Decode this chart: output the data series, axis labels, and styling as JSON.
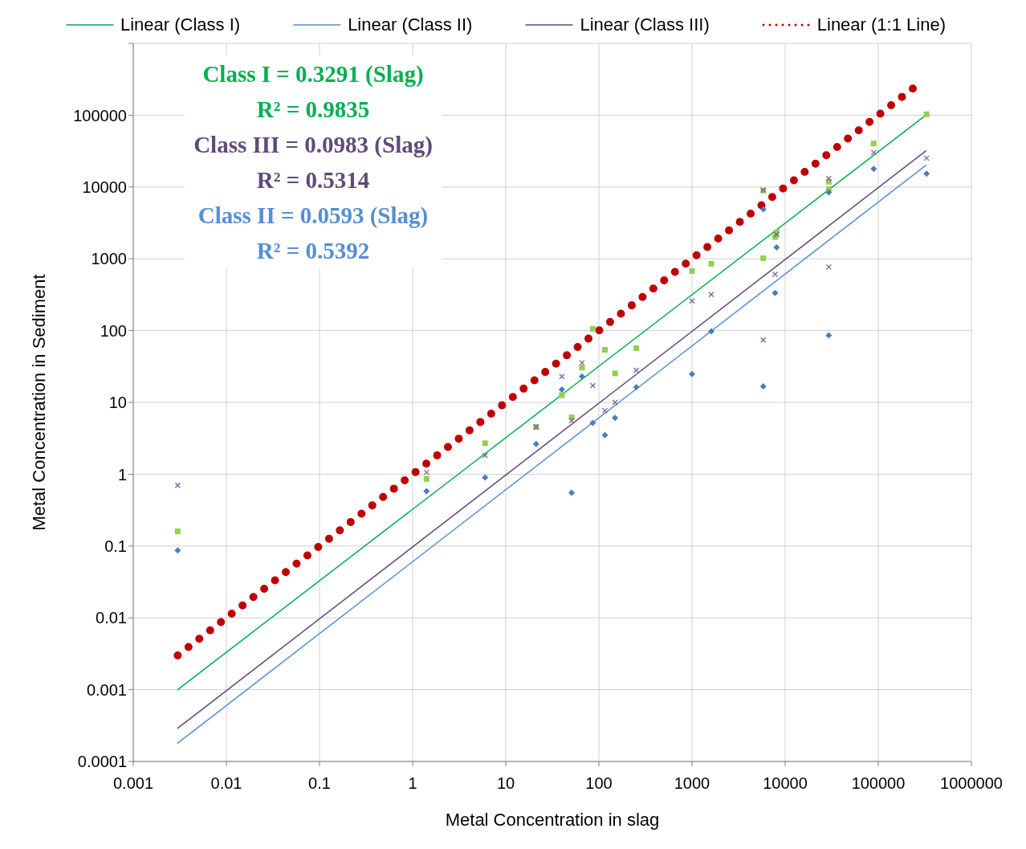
{
  "chart_data": {
    "type": "scatter",
    "xlabel": "Metal Concentration in slag",
    "ylabel": "Metal Concentration in Sediment",
    "log": "xy",
    "grid": true,
    "legend": "top",
    "xlim": [
      0.001,
      1000000
    ],
    "xticks": [
      0.001,
      0.01,
      0.1,
      1,
      10,
      100,
      1000,
      10000,
      100000,
      1000000
    ],
    "ylim": [
      0.0001,
      1000000
    ],
    "yticks": [
      0.0001,
      0.001,
      0.01,
      0.1,
      1,
      10,
      100,
      1000,
      10000,
      100000,
      {
        "value": 1000000,
        "label": null
      }
    ],
    "annotations": [
      "Class I = 0.3291 (Slag)",
      "R² = 0.9835",
      "Class III = 0.0983 (Slag)",
      "R² = 0.5314",
      "Class II = 0.0593 (Slag)",
      "R² = 0.5392"
    ],
    "series": [
      {
        "marker": "square",
        "color": "#92d050",
        "x": [
          0.003,
          1.41,
          6,
          21.2,
          40,
          51,
          65.8,
          86,
          116,
          149,
          252,
          1000,
          1610,
          5820,
          5820,
          7800,
          8100,
          29400,
          29400,
          89300,
          330000
        ],
        "values": [
          0.16,
          0.86,
          2.7,
          4.55,
          12.6,
          6.2,
          30.5,
          106,
          54,
          25.4,
          57,
          676,
          853,
          8900,
          1020,
          2010,
          2350,
          11800,
          9300,
          40300,
          103000
        ]
      },
      {
        "marker": "diamond",
        "color": "#4a7ebb",
        "x": [
          0.003,
          1.41,
          6,
          21.2,
          40,
          51,
          65.8,
          86,
          116,
          149,
          252,
          1000,
          1610,
          5820,
          5820,
          7800,
          8100,
          29400,
          29400,
          89300,
          330000
        ],
        "values": [
          0.087,
          0.58,
          0.9,
          2.64,
          15.1,
          0.55,
          22.9,
          5.2,
          3.5,
          6.1,
          16.3,
          24.8,
          98,
          4890,
          16.7,
          334,
          1440,
          8400,
          86,
          17900,
          15300
        ]
      },
      {
        "marker": "cross",
        "color": "#7f5fa0",
        "x": [
          0.003,
          1.41,
          6,
          21.2,
          40,
          51,
          65.8,
          86,
          116,
          149,
          252,
          1000,
          1610,
          5820,
          5820,
          7800,
          8100,
          29400,
          29400,
          89300,
          330000
        ],
        "values": [
          0.7,
          1.06,
          1.83,
          4.55,
          22.9,
          5.6,
          35.7,
          17.2,
          7.7,
          10,
          28,
          258,
          318,
          9100,
          74,
          608,
          2180,
          13100,
          770,
          30200,
          25200
        ]
      },
      {
        "type": "line",
        "name": "Linear (Class I)",
        "color": "#00b050",
        "line_style": "solid",
        "x": [
          0.003,
          324000
        ],
        "values": [
          0.001,
          100000
        ]
      },
      {
        "type": "line",
        "name": "Linear (Class II)",
        "color": "#558ed5",
        "line_style": "solid",
        "x": [
          0.003,
          324000
        ],
        "values": [
          0.00018,
          20000
        ]
      },
      {
        "type": "line",
        "name": "Linear (Class III)",
        "color": "#604a7b",
        "line_style": "solid",
        "x": [
          0.003,
          324000
        ],
        "values": [
          0.00029,
          31800
        ]
      },
      {
        "type": "line",
        "name": "Linear (1:1 Line)",
        "color": "#c00000",
        "line_style": "dotted",
        "x": [
          0.003,
          272000
        ],
        "values": [
          0.003,
          272000
        ]
      }
    ]
  }
}
